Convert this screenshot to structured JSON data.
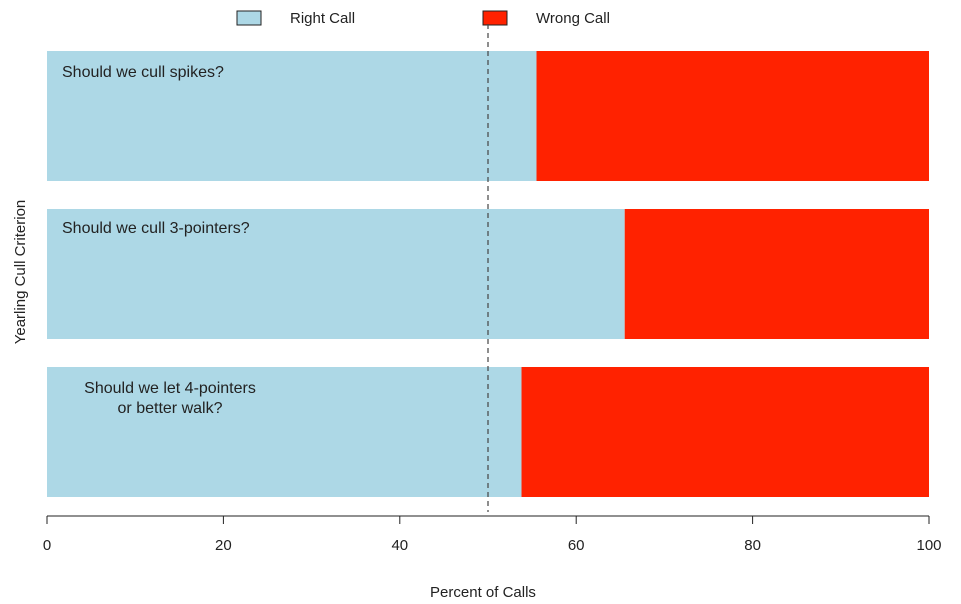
{
  "chart_data": {
    "type": "bar",
    "orientation": "horizontal",
    "stacked": true,
    "xlabel": "Percent of Calls",
    "ylabel": "Yearling Cull Criterion",
    "xlim": [
      0,
      100
    ],
    "xticks": [
      0,
      20,
      40,
      60,
      80,
      100
    ],
    "reference_line": {
      "x": 50,
      "style": "dashed"
    },
    "legend": {
      "placement": "top",
      "entries": [
        "Right Call",
        "Wrong Call"
      ]
    },
    "categories": [
      [
        "Should we cull spikes?"
      ],
      [
        "Should we cull 3-pointers?"
      ],
      [
        "Should we let 4-pointers",
        "or better walk?"
      ]
    ],
    "series": [
      {
        "name": "Right Call",
        "color": "#add8e6",
        "values": [
          55.5,
          65.5,
          53.8
        ]
      },
      {
        "name": "Wrong Call",
        "color": "#ff2200",
        "values": [
          44.5,
          34.5,
          46.2
        ]
      }
    ]
  }
}
